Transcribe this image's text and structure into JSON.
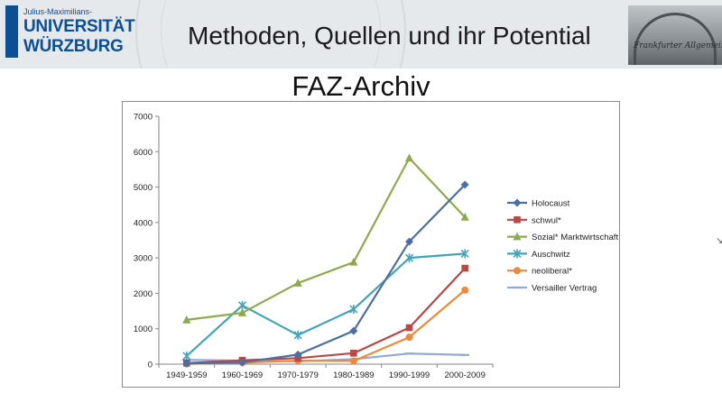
{
  "header": {
    "logo": {
      "line1": "Julius-Maximilians-",
      "line2": "UNIVERSITÄT",
      "line3": "WÜRZBURG"
    },
    "title": "Methoden, Quellen und ihr Potential",
    "photo_text": "Frankfurter Allgemeine"
  },
  "slide": {
    "title": "FAZ-Archiv"
  },
  "chart_data": {
    "type": "line",
    "title": "",
    "xlabel": "",
    "ylabel": "",
    "categories": [
      "1949-1959",
      "1960-1969",
      "1970-1979",
      "1980-1989",
      "1990-1999",
      "2000-2009"
    ],
    "ylim": [
      0,
      7000
    ],
    "yticks": [
      0,
      1000,
      2000,
      3000,
      4000,
      5000,
      6000,
      7000
    ],
    "grid": false,
    "legend_position": "right",
    "series": [
      {
        "name": "Holocaust",
        "color": "#4a6fa5",
        "marker": "diamond",
        "values": [
          20,
          50,
          270,
          940,
          3460,
          5070
        ]
      },
      {
        "name": "schwul*",
        "color": "#b94846",
        "marker": "square",
        "values": [
          30,
          110,
          170,
          310,
          1030,
          2710
        ]
      },
      {
        "name": "Sozial* Marktwirtschaft",
        "color": "#8faa4c",
        "marker": "triangle",
        "values": [
          1250,
          1450,
          2290,
          2880,
          5820,
          4150
        ]
      },
      {
        "name": "Auschwitz",
        "color": "#3fa6b8",
        "marker": "star",
        "values": [
          230,
          1660,
          820,
          1550,
          3000,
          3120
        ]
      },
      {
        "name": "neoliberal*",
        "color": "#f08a3a",
        "marker": "circle",
        "values": [
          10,
          40,
          100,
          90,
          760,
          2090
        ]
      },
      {
        "name": "Versailler Vertrag",
        "color": "#93aad4",
        "marker": "dash",
        "values": [
          120,
          100,
          80,
          140,
          300,
          260
        ]
      }
    ]
  }
}
